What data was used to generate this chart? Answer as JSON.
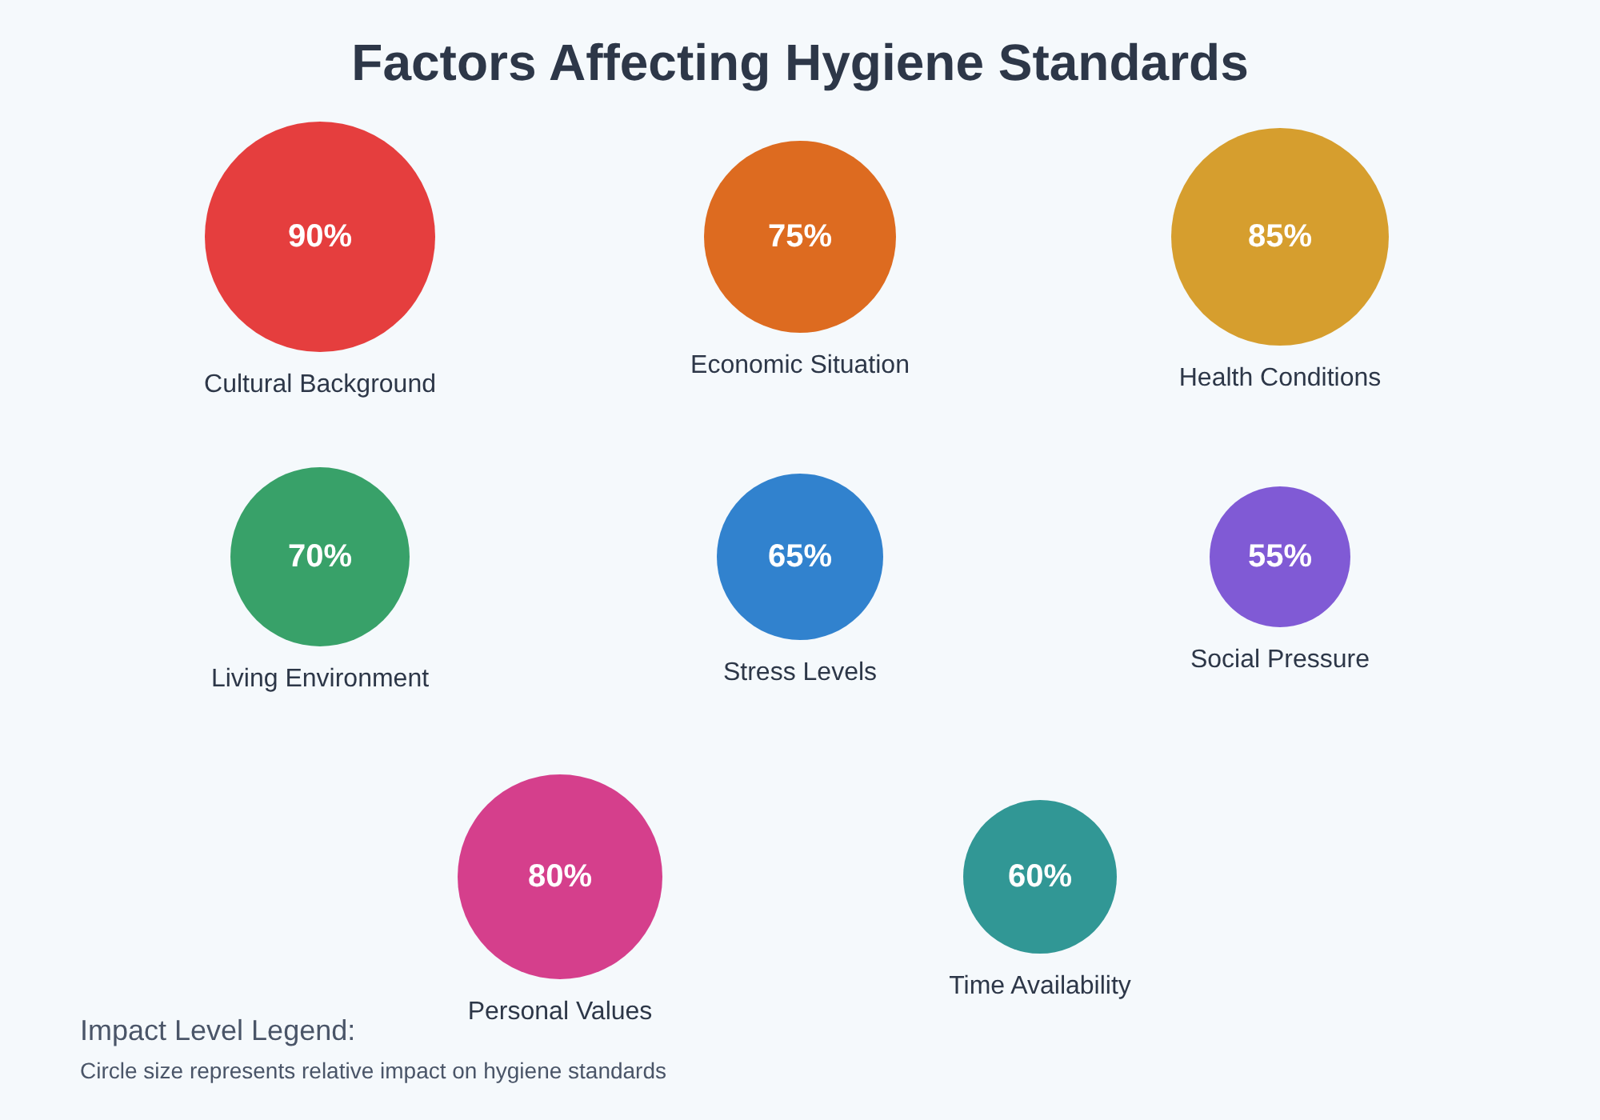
{
  "chart_data": {
    "type": "other",
    "title": "Factors Affecting Hygiene Standards",
    "categories": [
      "Cultural Background",
      "Economic Situation",
      "Health Conditions",
      "Living Environment",
      "Stress Levels",
      "Social Pressure",
      "Personal Values",
      "Time Availability"
    ],
    "values": [
      90,
      75,
      85,
      70,
      65,
      55,
      80,
      60
    ],
    "value_labels": [
      "90%",
      "75%",
      "85%",
      "70%",
      "65%",
      "55%",
      "80%",
      "60%"
    ],
    "colors": [
      "#e53e3e",
      "#dd6b20",
      "#d69e2e",
      "#38a169",
      "#3182ce",
      "#805ad5",
      "#d53f8c",
      "#319795"
    ],
    "annotations": [
      "Impact Level Legend:",
      "Circle size represents relative impact on hygiene standards"
    ]
  }
}
